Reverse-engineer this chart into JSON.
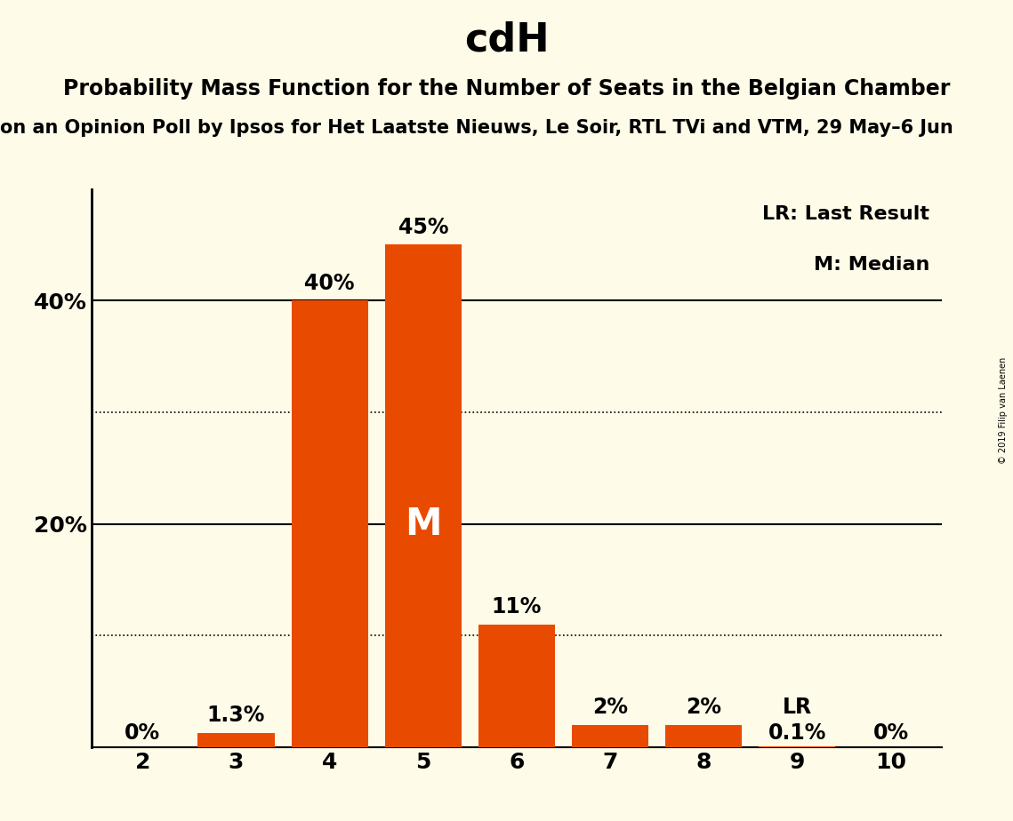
{
  "title": "cdH",
  "subtitle1": "Probability Mass Function for the Number of Seats in the Belgian Chamber",
  "subtitle2": "on an Opinion Poll by Ipsos for Het Laatste Nieuws, Le Soir, RTL TVi and VTM, 29 May–6 Jun",
  "copyright": "© 2019 Filip van Laenen",
  "categories": [
    2,
    3,
    4,
    5,
    6,
    7,
    8,
    9,
    10
  ],
  "values": [
    0.0,
    1.3,
    40.0,
    45.0,
    11.0,
    2.0,
    2.0,
    0.1,
    0.0
  ],
  "bar_labels": [
    "0%",
    "1.3%",
    "40%",
    "45%",
    "11%",
    "2%",
    "2%",
    "0.1%",
    "0%"
  ],
  "bar_color": "#E84B00",
  "background_color": "#FEFBE8",
  "median_bar_idx": 3,
  "median_label": "M",
  "lr_bar_idx": 7,
  "lr_label": "LR",
  "legend_lr": "LR: Last Result",
  "legend_m": "M: Median",
  "ylim": [
    0,
    50
  ],
  "solid_grid": [
    20,
    40
  ],
  "dotted_grid": [
    10,
    30
  ],
  "ytick_positions": [
    20,
    40
  ],
  "ytick_labels": [
    "20%",
    "40%"
  ],
  "title_fontsize": 32,
  "subtitle1_fontsize": 17,
  "subtitle2_fontsize": 15,
  "axis_fontsize": 18,
  "bar_label_fontsize": 17,
  "median_label_fontsize": 30,
  "lr_label_fontsize": 17,
  "legend_fontsize": 16
}
